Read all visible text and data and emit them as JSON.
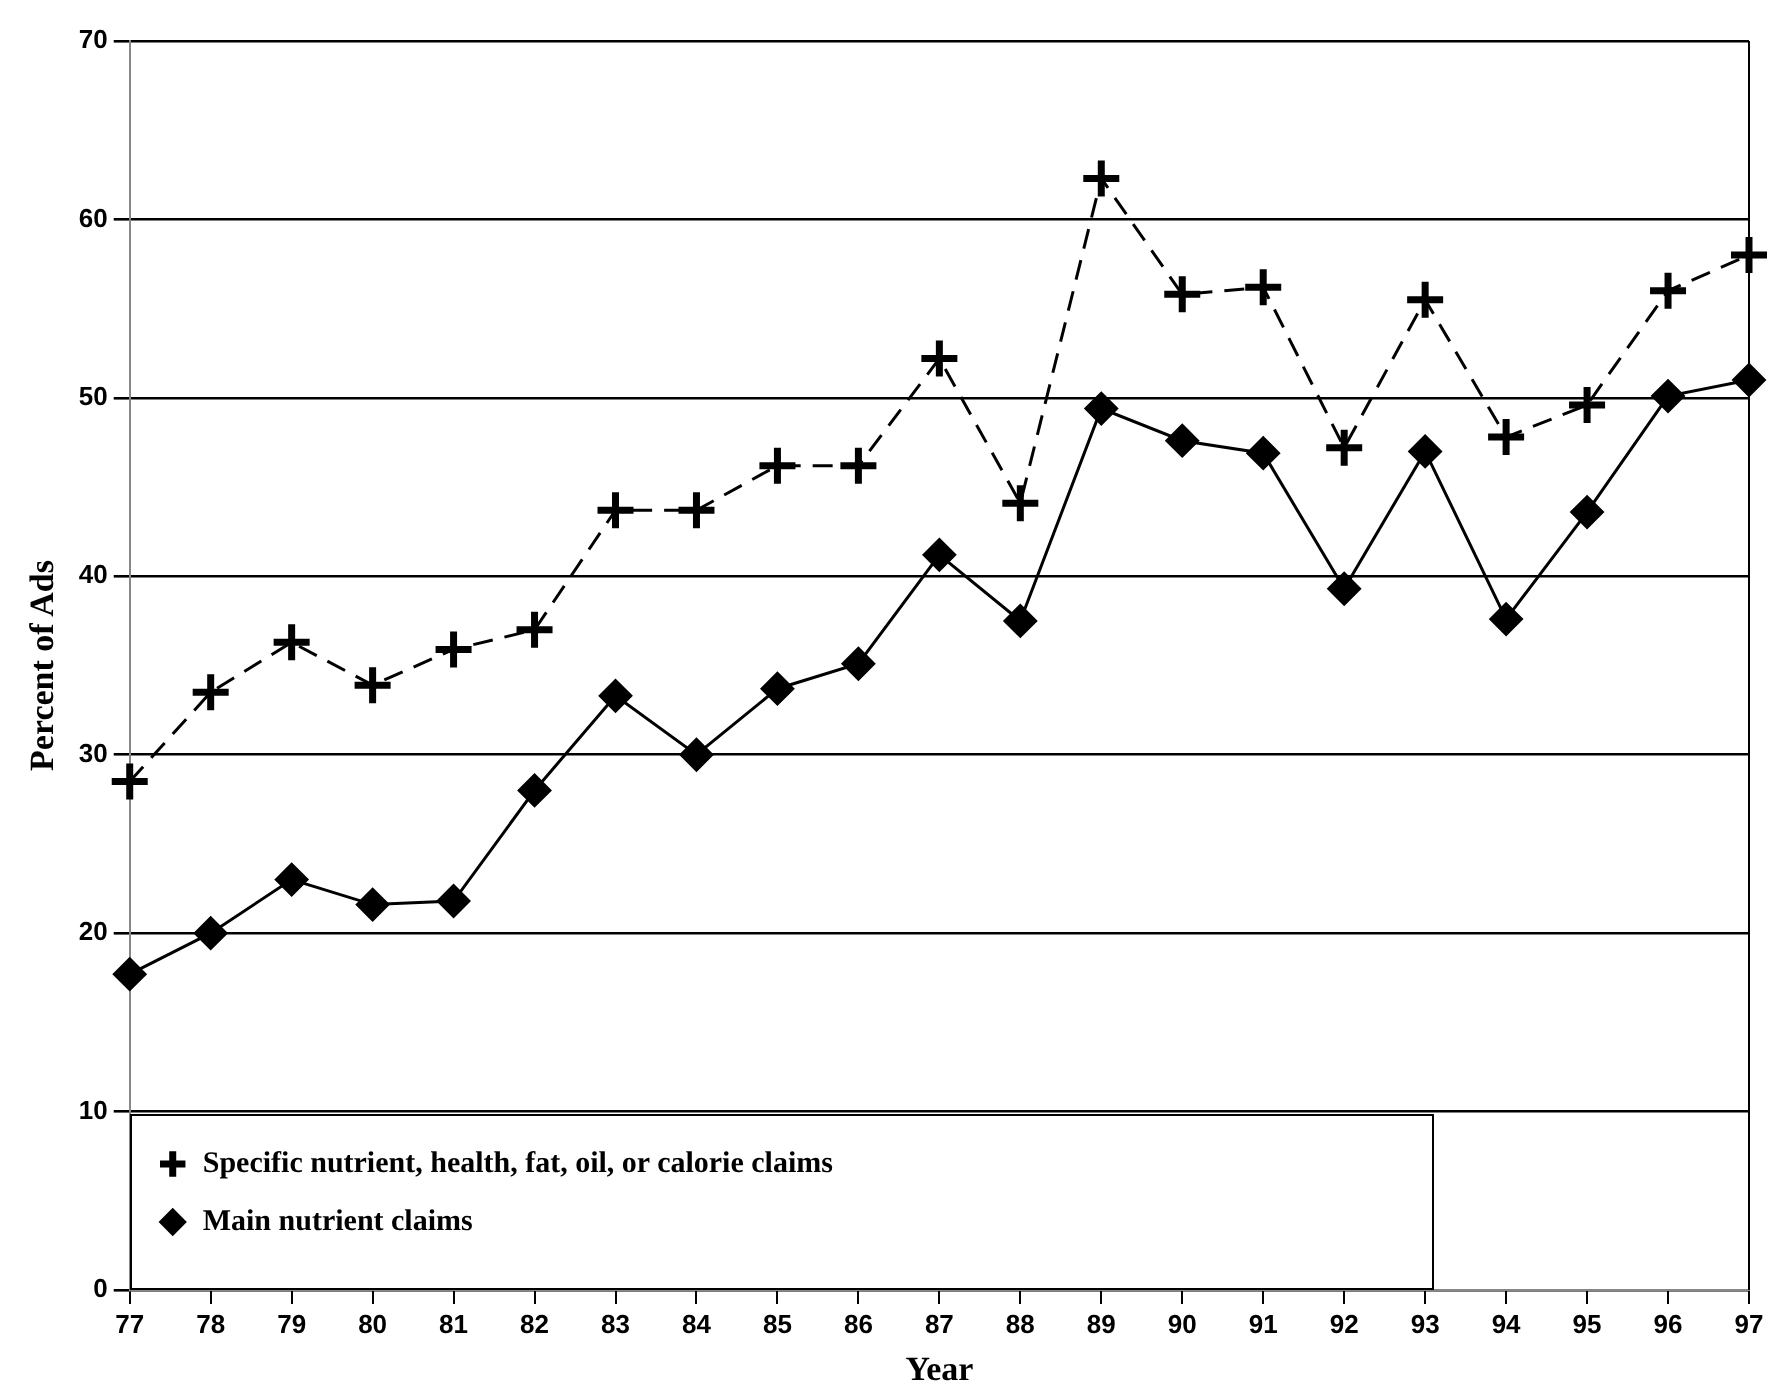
{
  "chart_data": {
    "type": "line",
    "xlabel": "Year",
    "ylabel": "Percent of Ads",
    "categories": [
      "77",
      "78",
      "79",
      "80",
      "81",
      "82",
      "83",
      "84",
      "85",
      "86",
      "87",
      "88",
      "89",
      "90",
      "91",
      "92",
      "93",
      "94",
      "95",
      "96",
      "97"
    ],
    "series": [
      {
        "name": "Specific nutrient, health, fat, oil, or calorie claims",
        "color": "#000000",
        "marker": "cross",
        "line_style": "dashed",
        "values": [
          28.5,
          33.5,
          36.3,
          33.9,
          35.9,
          37.0,
          43.7,
          43.7,
          46.2,
          46.2,
          52.2,
          44.1,
          62.3,
          55.8,
          56.2,
          47.2,
          55.5,
          47.8,
          49.6,
          56.0,
          58.0
        ]
      },
      {
        "name": "Main nutrient claims",
        "color": "#000000",
        "marker": "diamond",
        "line_style": "solid",
        "values": [
          17.7,
          20.0,
          23.0,
          21.6,
          21.8,
          28.0,
          33.3,
          30.0,
          33.7,
          35.1,
          41.2,
          37.5,
          49.4,
          47.6,
          46.9,
          39.3,
          47.0,
          37.6,
          43.6,
          50.1,
          51.0
        ]
      }
    ],
    "ylim": [
      0,
      70
    ],
    "yticks": [
      0,
      10,
      20,
      30,
      40,
      50,
      60,
      70
    ],
    "grid": "y",
    "legend": "bottom left"
  }
}
